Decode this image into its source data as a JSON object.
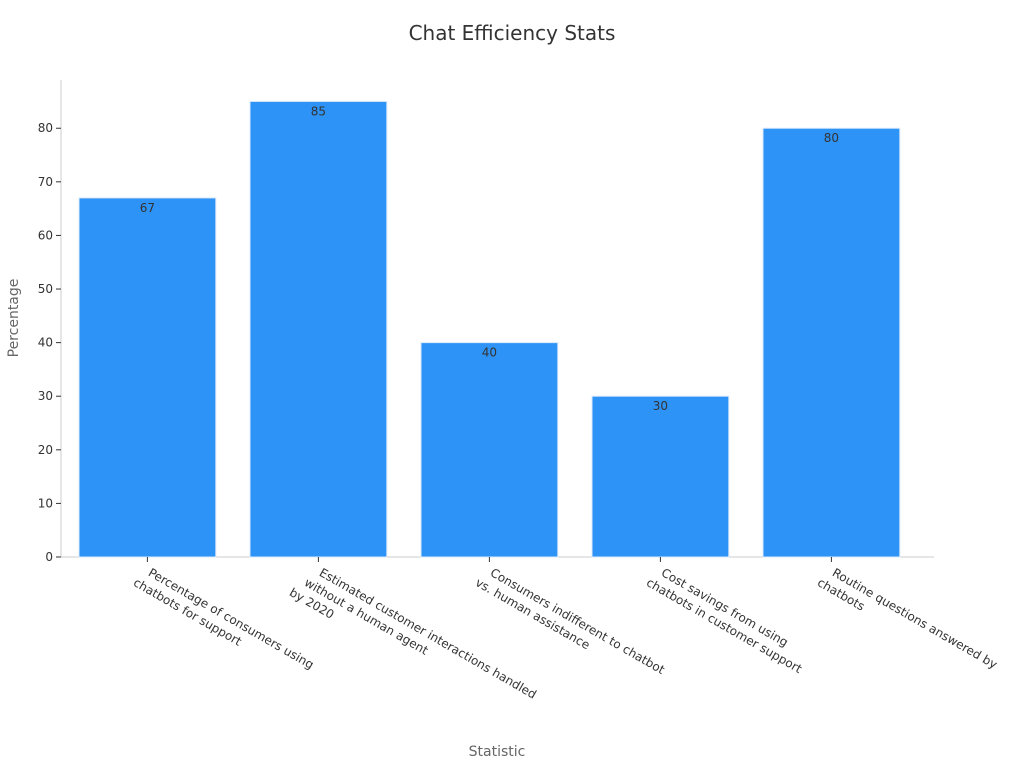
{
  "chart_data": {
    "type": "bar",
    "title": "Chat Efficiency Stats",
    "xlabel": "Statistic",
    "ylabel": "Percentage",
    "categories": [
      "Percentage of consumers using chatbots for support",
      "Estimated customer interactions handled without a human agent by 2020",
      "Consumers indifferent to chatbot vs. human assistance",
      "Cost savings from using chatbots in customer support",
      "Routine questions answered by chatbots"
    ],
    "category_lines": [
      [
        "Percentage of consumers using",
        "chatbots for support"
      ],
      [
        "Estimated customer interactions handled",
        "without a human agent",
        "by 2020"
      ],
      [
        "Consumers indifferent to chatbot",
        "vs. human assistance"
      ],
      [
        "Cost savings from using",
        "chatbots in customer support"
      ],
      [
        "Routine questions answered by",
        "chatbots"
      ]
    ],
    "values": [
      67,
      85,
      40,
      30,
      80
    ],
    "ylim": [
      0,
      89
    ],
    "yticks": [
      0,
      10,
      20,
      30,
      40,
      50,
      60,
      70,
      80
    ],
    "grid": false,
    "legend": "none",
    "bar_color": "#2e93f6",
    "data_labels": true
  }
}
